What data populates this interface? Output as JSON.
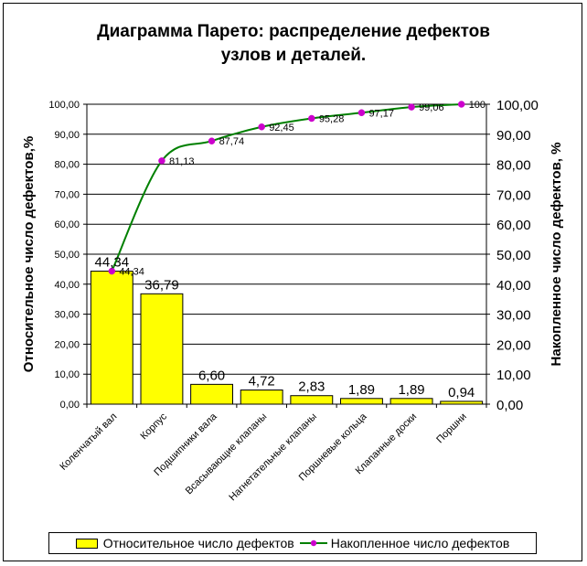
{
  "chart_data": {
    "type": "bar",
    "title_lines": [
      "Диаграмма Парето: распределение дефектов",
      "узлов и деталей."
    ],
    "ylabel_left": "Относительное число дефектов,%",
    "ylabel_right": "Накопленное число дефектов, %",
    "ylim": [
      0,
      100
    ],
    "y_ticks_left": [
      "0,00",
      "10,00",
      "20,00",
      "30,00",
      "40,00",
      "50,00",
      "60,00",
      "70,00",
      "80,00",
      "90,00",
      "100,00"
    ],
    "y_ticks_right": [
      "0,00",
      "10,00",
      "20,00",
      "30,00",
      "40,00",
      "50,00",
      "60,00",
      "70,00",
      "80,00",
      "90,00",
      "100,00"
    ],
    "categories": [
      "Коленчатый вал",
      "Корпус",
      "Подшипники вала",
      "Всасывающие клапаны",
      "Нагнетательные клапаны",
      "Поршневые кольца",
      "Клапанные доски",
      "Поршни"
    ],
    "series": [
      {
        "name": "Относительное число дефектов",
        "kind": "bar",
        "color": "#ffff00",
        "values": [
          44.34,
          36.79,
          6.6,
          4.72,
          2.83,
          1.89,
          1.89,
          0.94
        ],
        "labels": [
          "44,34",
          "36,79",
          "6,60",
          "4,72",
          "2,83",
          "1,89",
          "1,89",
          "0,94"
        ]
      },
      {
        "name": "Накопленное число дефектов",
        "kind": "line",
        "color": "#008000",
        "marker_color": "#cc00cc",
        "values": [
          44.34,
          81.13,
          87.74,
          92.45,
          95.28,
          97.17,
          99.06,
          100
        ],
        "labels": [
          "44,34",
          "81,13",
          "87,74",
          "92,45",
          "95,28",
          "97,17",
          "99,06",
          "100"
        ]
      }
    ],
    "grid": true,
    "legend_position": "bottom"
  }
}
